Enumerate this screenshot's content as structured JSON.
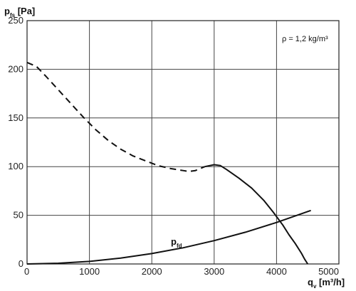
{
  "chart_data": {
    "type": "line",
    "ylabel": {
      "main": "p",
      "sub": "fs",
      "tail": " [Pa]"
    },
    "xlabel": {
      "main": "q",
      "sub": "v",
      "tail": " [m³/h]"
    },
    "xlim": [
      0,
      5000
    ],
    "ylim": [
      0,
      250
    ],
    "x_ticks": [
      0,
      1000,
      2000,
      3000,
      4000,
      5000
    ],
    "y_ticks": [
      0,
      50,
      100,
      150,
      200,
      250
    ],
    "grid": true,
    "annotation": "ρ = 1,2 kg/m³",
    "series": [
      {
        "id": "pfs-dashed",
        "style": "dashed",
        "x": [
          0,
          150,
          300,
          500,
          700,
          900,
          1100,
          1300,
          1500,
          1700,
          1900,
          2100,
          2300,
          2500,
          2600,
          2700,
          2850
        ],
        "y": [
          207,
          203,
          193,
          179,
          165,
          151,
          138,
          127,
          118,
          111,
          106,
          101,
          98,
          96,
          95,
          96,
          100
        ]
      },
      {
        "id": "pfs-solid",
        "style": "solid",
        "x": [
          2850,
          3000,
          3100,
          3200,
          3400,
          3600,
          3800,
          3950,
          4100,
          4200,
          4300,
          4400,
          4450,
          4500
        ],
        "y": [
          100,
          102,
          101,
          97,
          88,
          78,
          65,
          53,
          40,
          30,
          21,
          11,
          5,
          0
        ]
      },
      {
        "id": "pfd",
        "style": "solid",
        "name": {
          "main": "p",
          "sub": "fd"
        },
        "x": [
          0,
          500,
          1000,
          1500,
          2000,
          2500,
          3000,
          3500,
          4000,
          4500,
          4550
        ],
        "y": [
          0,
          0.7,
          2.6,
          6,
          10.7,
          16.6,
          24,
          32.6,
          42.6,
          53.9,
          55
        ]
      }
    ]
  }
}
